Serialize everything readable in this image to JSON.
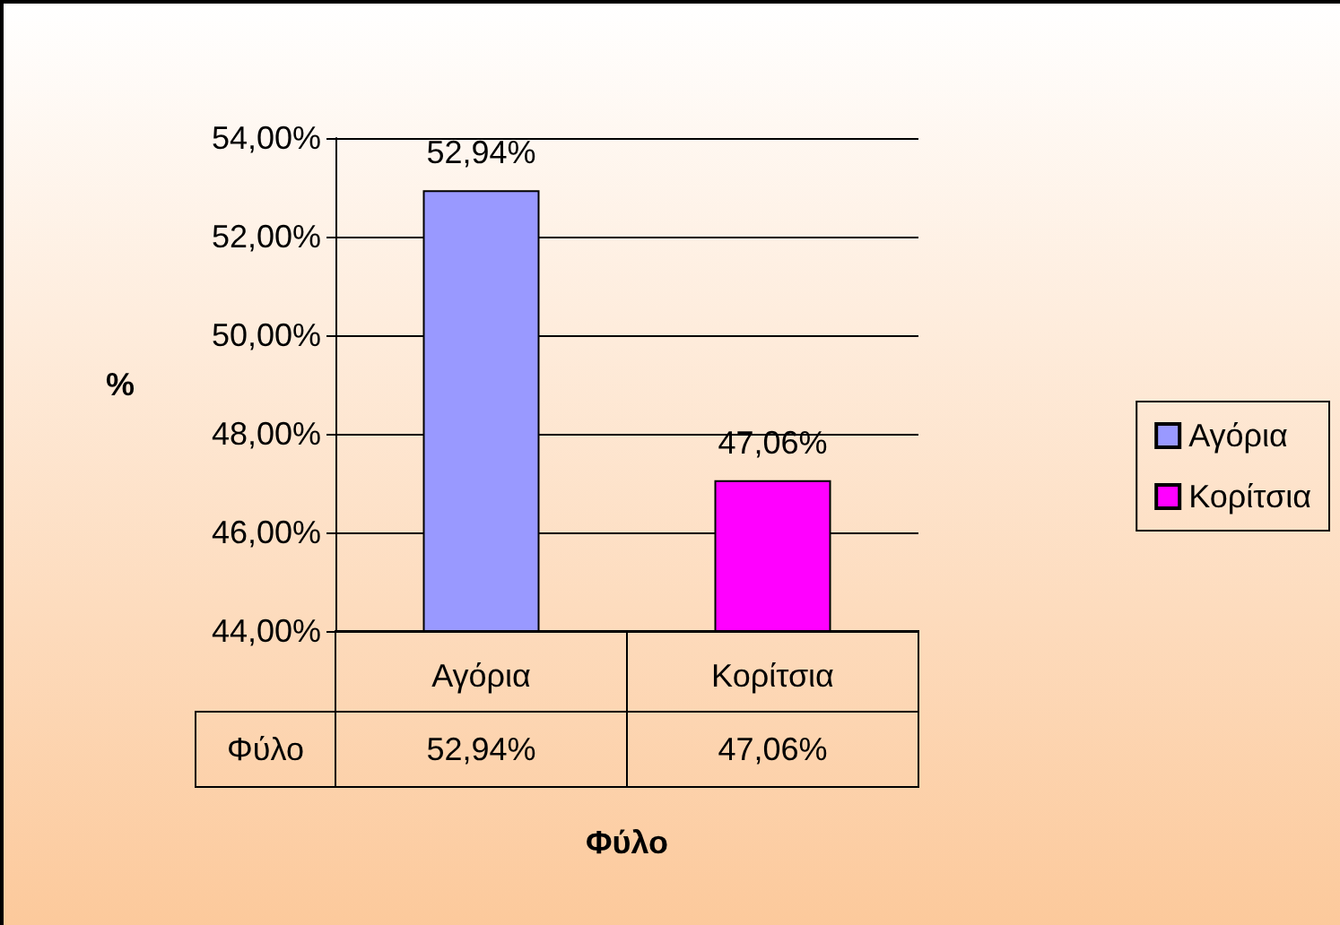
{
  "chart_data": {
    "type": "bar",
    "categories": [
      "Αγόρια",
      "Κορίτσια"
    ],
    "series": [
      {
        "name": "Αγόρια",
        "color": "#9999ff",
        "values": [
          52.94,
          null
        ],
        "value_labels": [
          "52,94%",
          null
        ]
      },
      {
        "name": "Κορίτσια",
        "color": "#ff00ff",
        "values": [
          null,
          47.06
        ],
        "value_labels": [
          null,
          "47,06%"
        ]
      }
    ],
    "ylabel": "%",
    "xlabel": "Φύλο",
    "annotations": [
      "Φύλο"
    ],
    "ylim": [
      44,
      54
    ],
    "yticks": [
      {
        "value": 44,
        "label": "44,00%"
      },
      {
        "value": 46,
        "label": "46,00%"
      },
      {
        "value": 48,
        "label": "48,00%"
      },
      {
        "value": 50,
        "label": "50,00%"
      },
      {
        "value": 52,
        "label": "52,00%"
      },
      {
        "value": 54,
        "label": "54,00%"
      }
    ],
    "grid": "y",
    "legend": "right"
  }
}
